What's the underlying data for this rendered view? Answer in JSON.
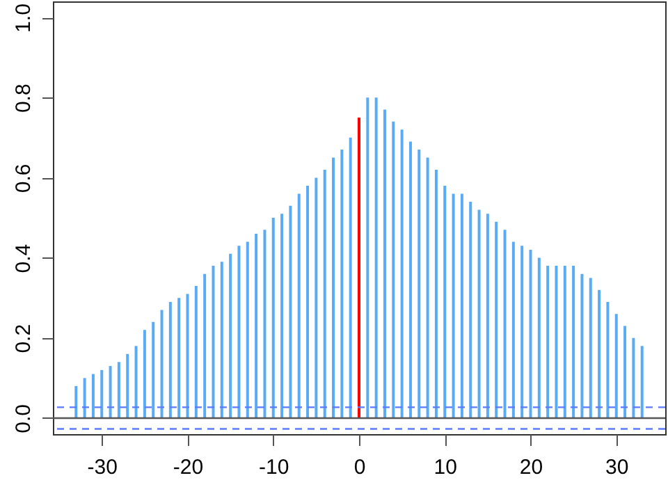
{
  "chart_data": {
    "type": "bar",
    "x": [
      -33,
      -32,
      -31,
      -30,
      -29,
      -28,
      -27,
      -26,
      -25,
      -24,
      -23,
      -22,
      -21,
      -20,
      -19,
      -18,
      -17,
      -16,
      -15,
      -14,
      -13,
      -12,
      -11,
      -10,
      -9,
      -8,
      -7,
      -6,
      -5,
      -4,
      -3,
      -2,
      -1,
      0,
      1,
      2,
      3,
      4,
      5,
      6,
      7,
      8,
      9,
      10,
      11,
      12,
      13,
      14,
      15,
      16,
      17,
      18,
      19,
      20,
      21,
      22,
      23,
      24,
      25,
      26,
      27,
      28,
      29,
      30,
      31,
      32,
      33
    ],
    "values": [
      0.08,
      0.1,
      0.11,
      0.12,
      0.13,
      0.14,
      0.16,
      0.18,
      0.22,
      0.24,
      0.27,
      0.29,
      0.3,
      0.31,
      0.33,
      0.36,
      0.38,
      0.39,
      0.41,
      0.43,
      0.44,
      0.46,
      0.47,
      0.5,
      0.51,
      0.53,
      0.56,
      0.58,
      0.6,
      0.62,
      0.65,
      0.67,
      0.7,
      0.75,
      0.8,
      0.8,
      0.77,
      0.74,
      0.72,
      0.69,
      0.67,
      0.65,
      0.62,
      0.58,
      0.56,
      0.56,
      0.54,
      0.52,
      0.51,
      0.49,
      0.47,
      0.44,
      0.43,
      0.42,
      0.4,
      0.38,
      0.38,
      0.38,
      0.38,
      0.36,
      0.35,
      0.32,
      0.29,
      0.26,
      0.23,
      0.2,
      0.18
    ],
    "colors": [
      "#5aabf5",
      "#5aabf5",
      "#5aabf5",
      "#5aabf5",
      "#5aabf5",
      "#5aabf5",
      "#5aabf5",
      "#5aabf5",
      "#5aabf5",
      "#5aabf5",
      "#5aabf5",
      "#5aabf5",
      "#5aabf5",
      "#5aabf5",
      "#5aabf5",
      "#5aabf5",
      "#5aabf5",
      "#5aabf5",
      "#5aabf5",
      "#5aabf5",
      "#5aabf5",
      "#5aabf5",
      "#5aabf5",
      "#5aabf5",
      "#5aabf5",
      "#5aabf5",
      "#5aabf5",
      "#5aabf5",
      "#5aabf5",
      "#5aabf5",
      "#5aabf5",
      "#5aabf5",
      "#5aabf5",
      "#ff0000",
      "#5aabf5",
      "#5aabf5",
      "#5aabf5",
      "#5aabf5",
      "#5aabf5",
      "#5aabf5",
      "#5aabf5",
      "#5aabf5",
      "#5aabf5",
      "#5aabf5",
      "#5aabf5",
      "#5aabf5",
      "#5aabf5",
      "#5aabf5",
      "#5aabf5",
      "#5aabf5",
      "#5aabf5",
      "#5aabf5",
      "#5aabf5",
      "#5aabf5",
      "#5aabf5",
      "#5aabf5",
      "#5aabf5",
      "#5aabf5",
      "#5aabf5",
      "#5aabf5",
      "#5aabf5",
      "#5aabf5",
      "#5aabf5",
      "#5aabf5",
      "#5aabf5",
      "#5aabf5",
      "#5aabf5"
    ],
    "xlim": [
      -35.7,
      35.7
    ],
    "xticks": [
      -30,
      -20,
      -10,
      0,
      10,
      20,
      30
    ],
    "ylim": [
      -0.04,
      1.04
    ],
    "yticks": [
      {
        "value": 0,
        "label": "0.0"
      },
      {
        "value": 0.2,
        "label": "0.2"
      },
      {
        "value": 0.4,
        "label": "0.4"
      },
      {
        "value": 0.6,
        "label": "0.6"
      },
      {
        "value": 0.8,
        "label": "0.8"
      },
      {
        "value": 1,
        "label": "1.0"
      }
    ],
    "ref_lines": [
      {
        "axis": "y",
        "value": 0,
        "color": "#555555",
        "line_style": "solid"
      },
      {
        "axis": "y",
        "value": 0.027,
        "color": "#5b7bff",
        "line_style": "dashed"
      },
      {
        "axis": "y",
        "value": -0.027,
        "color": "#5b7bff",
        "line_style": "dashed"
      }
    ],
    "grid": false
  }
}
